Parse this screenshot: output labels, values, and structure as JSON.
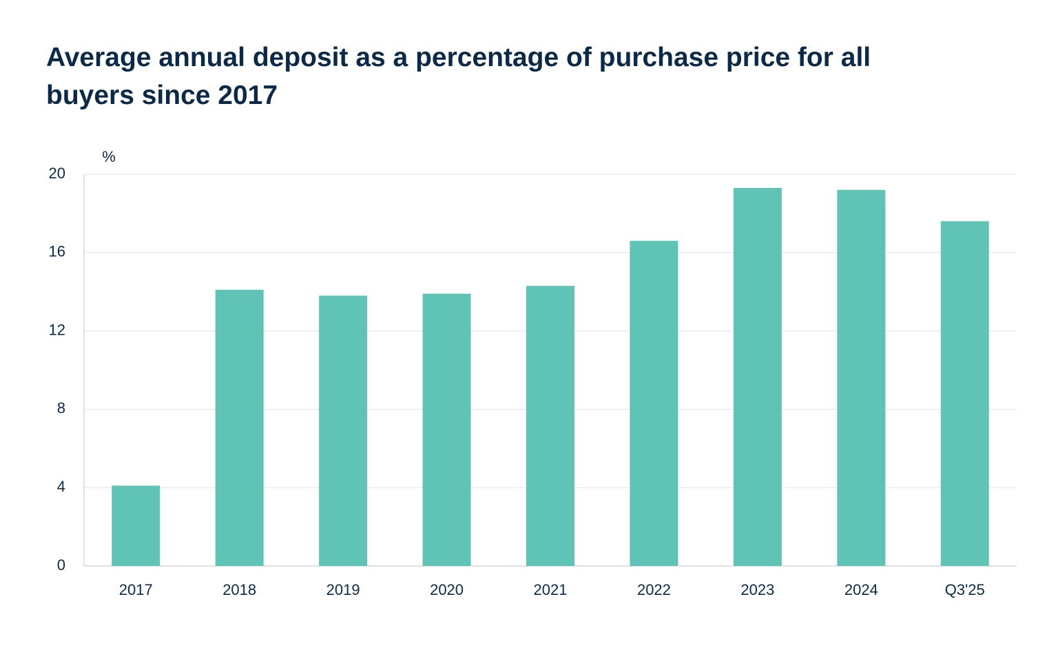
{
  "chart_data": {
    "type": "bar",
    "title": "Average annual deposit as a percentage of purchase price for all buyers since 2017",
    "y_unit": "%",
    "categories": [
      "2017",
      "2018",
      "2019",
      "2020",
      "2021",
      "2022",
      "2023",
      "2024",
      "Q3'25"
    ],
    "values": [
      4.1,
      14.1,
      13.8,
      13.9,
      14.3,
      16.6,
      19.3,
      19.2,
      17.6
    ],
    "color": "#5fc3b5",
    "ylim": [
      0,
      20
    ],
    "yticks": [
      0,
      4,
      8,
      12,
      16,
      20
    ],
    "grid": true
  }
}
